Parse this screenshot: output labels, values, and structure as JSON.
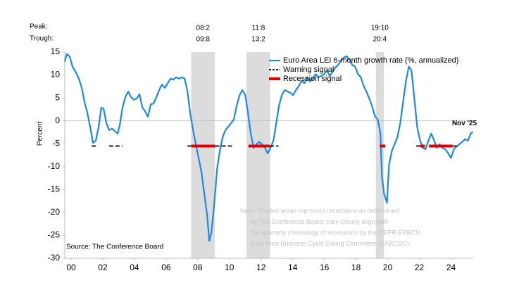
{
  "chart_data": {
    "type": "line",
    "ylabel": "Percent",
    "source": "Source: The Conference Board",
    "peak_label": "Peak:",
    "trough_label": "Trough:",
    "annotation": {
      "text": "Nov '25",
      "x": 2025.88,
      "y": -2.4
    },
    "note": [
      "Note: Shaded areas represent recessions as determined",
      "by The Conference Board; they closely align with",
      "the quarterly chronology of recessions by the CEPR-EABCN",
      "Euro Area Business Cycle Dating Committee (EABCDC)."
    ],
    "recessions": [
      {
        "peak": "08:2",
        "trough": "09:8",
        "start": 2008.08,
        "end": 2009.58
      },
      {
        "peak": "11:8",
        "trough": "13:2",
        "start": 2011.58,
        "end": 2013.08
      },
      {
        "peak": "19:10",
        "trough": "20:4",
        "start": 2019.75,
        "end": 2020.25
      }
    ],
    "recession_color": "#dcdcdc",
    "xlim": [
      2000.1,
      2025.9
    ],
    "xticks": [
      {
        "value": 2000.5,
        "label": "00"
      },
      {
        "value": 2002.5,
        "label": "02"
      },
      {
        "value": 2004.5,
        "label": "04"
      },
      {
        "value": 2006.5,
        "label": "06"
      },
      {
        "value": 2008.5,
        "label": "08"
      },
      {
        "value": 2010.5,
        "label": "10"
      },
      {
        "value": 2012.5,
        "label": "12"
      },
      {
        "value": 2014.5,
        "label": "14"
      },
      {
        "value": 2016.5,
        "label": "16"
      },
      {
        "value": 2018.5,
        "label": "18"
      },
      {
        "value": 2020.5,
        "label": "20"
      },
      {
        "value": 2022.5,
        "label": "22"
      },
      {
        "value": 2024.5,
        "label": "24"
      }
    ],
    "ylim": [
      -30,
      15
    ],
    "yticks": [
      -30,
      -25,
      -20,
      -15,
      -10,
      -5,
      0,
      5,
      10,
      15
    ],
    "legend": "top-right",
    "series": [
      {
        "name": "Euro Area LEI 6-month growth rate (%, annualized)",
        "color": "#1e88e5",
        "width": 2.2,
        "dash": "none",
        "x": [
          2000.1,
          2000.23,
          2000.41,
          2000.59,
          2000.81,
          2000.99,
          2001.17,
          2001.35,
          2001.52,
          2001.7,
          2001.88,
          2002.06,
          2002.24,
          2002.41,
          2002.55,
          2002.73,
          2002.9,
          2003.08,
          2003.26,
          2003.44,
          2003.57,
          2003.75,
          2003.93,
          2004.11,
          2004.28,
          2004.46,
          2004.64,
          2004.82,
          2005.0,
          2005.17,
          2005.35,
          2005.53,
          2005.71,
          2005.89,
          2006.06,
          2006.24,
          2006.42,
          2006.6,
          2006.78,
          2006.96,
          2007.13,
          2007.31,
          2007.49,
          2007.67,
          2007.85,
          2008.02,
          2008.2,
          2008.38,
          2008.56,
          2008.74,
          2008.91,
          2009.09,
          2009.23,
          2009.36,
          2009.54,
          2009.72,
          2009.89,
          2010.07,
          2010.25,
          2010.43,
          2010.61,
          2010.78,
          2010.96,
          2011.14,
          2011.32,
          2011.5,
          2011.67,
          2011.85,
          2012.03,
          2012.21,
          2012.39,
          2012.56,
          2012.74,
          2012.92,
          2013.1,
          2013.28,
          2013.46,
          2013.63,
          2013.81,
          2013.99,
          2014.17,
          2014.35,
          2014.52,
          2014.7,
          2014.88,
          2015.06,
          2015.24,
          2015.41,
          2015.59,
          2015.77,
          2015.95,
          2016.13,
          2016.3,
          2016.48,
          2016.66,
          2016.84,
          2017.02,
          2017.19,
          2017.37,
          2017.55,
          2017.73,
          2017.91,
          2018.09,
          2018.26,
          2018.44,
          2018.62,
          2018.8,
          2018.98,
          2019.15,
          2019.33,
          2019.51,
          2019.69,
          2019.87,
          2020.04,
          2020.13,
          2020.27,
          2020.45,
          2020.58,
          2020.76,
          2020.93,
          2021.11,
          2021.29,
          2021.47,
          2021.65,
          2021.83,
          2022.0,
          2022.18,
          2022.36,
          2022.54,
          2022.72,
          2022.89,
          2023.07,
          2023.25,
          2023.43,
          2023.61,
          2023.78,
          2023.96,
          2024.14,
          2024.32,
          2024.5,
          2024.68,
          2024.85,
          2025.03,
          2025.21,
          2025.39,
          2025.57,
          2025.74,
          2025.88
        ],
        "values": [
          12.9,
          14.6,
          14,
          11.8,
          10.5,
          9.2,
          7.2,
          4.1,
          1.8,
          -1.3,
          -4.8,
          -4.3,
          -1.3,
          2.9,
          2.6,
          -0.5,
          -2,
          -1.7,
          -2.2,
          -2.8,
          -1,
          3,
          5.2,
          6.4,
          5.2,
          4.6,
          4.9,
          5.8,
          2.9,
          2.1,
          0.9,
          3.6,
          3.8,
          5.2,
          6.7,
          7.9,
          7.2,
          8.2,
          9.2,
          9,
          9.5,
          9.2,
          9.5,
          9.2,
          6.4,
          1.8,
          -2,
          -5.1,
          -8.2,
          -11.3,
          -15.9,
          -20.5,
          -26.2,
          -24.4,
          -18.2,
          -10.5,
          -6.6,
          -3.6,
          -2,
          -1.3,
          -0.5,
          0.3,
          3.3,
          5.6,
          6.7,
          5.6,
          1.8,
          -2.8,
          -5.9,
          -5.1,
          -4.6,
          -5.1,
          -5.9,
          -7.1,
          -5.9,
          -4.3,
          -0.5,
          3.3,
          5.6,
          6.7,
          6.4,
          6.1,
          5.6,
          6.7,
          7.6,
          8.7,
          8.2,
          9.5,
          8.6,
          9.2,
          10.2,
          9.5,
          9.8,
          10.2,
          11,
          9.8,
          10.7,
          11.6,
          12.2,
          13.2,
          13.8,
          14.1,
          13.3,
          12.2,
          11.8,
          10.2,
          9.5,
          7.6,
          6.4,
          4.9,
          3.3,
          1,
          0.3,
          -2.8,
          -12,
          -15.9,
          -17.9,
          -9.7,
          -6.6,
          -5.1,
          -3.6,
          -0.5,
          4.1,
          8.7,
          11.8,
          11,
          4.9,
          -1.3,
          -4.3,
          -5.9,
          -6.2,
          -4.3,
          -2.8,
          -4.3,
          -5.9,
          -5.1,
          -5.9,
          -6.2,
          -7.1,
          -8.1,
          -6.2,
          -5.6,
          -5.1,
          -4.6,
          -4,
          -4.3,
          -2.8,
          -2.4
        ]
      },
      {
        "name": "Warning signal",
        "color": "#000000",
        "width": 1.8,
        "dash": "6 3",
        "x": [
          2001.8,
          2002.1,
          null,
          2002.9,
          2003.75,
          null,
          2007.85,
          2008.1,
          null,
          2009.6,
          2010.7,
          null,
          2013.05,
          2013.6,
          null,
          2022.3,
          2022.55,
          null,
          2024.6,
          2024.9
        ],
        "values": [
          -5.5,
          -5.5,
          null,
          -5.5,
          -5.5,
          null,
          -5.5,
          -5.5,
          null,
          -5.5,
          -5.5,
          null,
          -5.5,
          -5.5,
          null,
          -5.5,
          -5.5,
          null,
          -5.5,
          -5.5
        ]
      },
      {
        "name": "Recession signal",
        "color": "#e00000",
        "width": 4,
        "dash": "none",
        "x": [
          2008.1,
          2009.6,
          null,
          2011.7,
          2013.05,
          null,
          2020.0,
          2020.35,
          null,
          2022.55,
          2022.85,
          null,
          2023.1,
          2024.6
        ],
        "values": [
          -5.5,
          -5.5,
          null,
          -5.5,
          -5.5,
          null,
          -5.5,
          -5.5,
          null,
          -5.5,
          -5.5,
          null,
          -5.5,
          -5.5
        ]
      }
    ]
  }
}
